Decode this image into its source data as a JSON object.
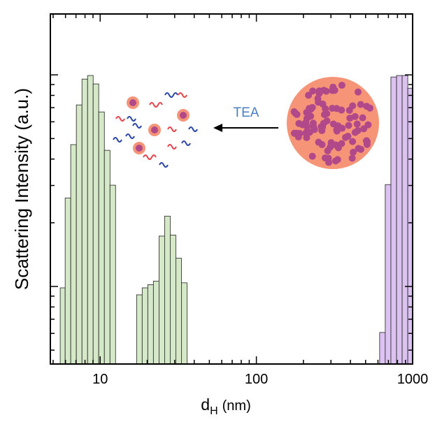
{
  "chart_data": {
    "type": "histogram",
    "ylabel": "Scattering Intensity (a.u.)",
    "xlabel": "d",
    "xlabel_subscript": "H",
    "xlabel_unit": "(nm)",
    "annotation": "TEA",
    "xscale": "log",
    "yscale": "log",
    "xlim": [
      4.8,
      1000
    ],
    "ylim": [
      4.3,
      194
    ],
    "xticks": [
      10,
      100,
      1000
    ],
    "xminor_ticks": [
      5,
      6,
      7,
      8,
      9,
      20,
      30,
      40,
      50,
      60,
      70,
      80,
      90,
      200,
      300,
      400,
      500,
      600,
      700,
      800,
      900
    ],
    "yticks": [
      10,
      100
    ],
    "yminor_ticks": [
      5,
      6,
      7,
      8,
      9,
      20,
      30,
      40,
      50,
      60,
      70,
      80,
      90
    ],
    "series": [
      {
        "color": "#d5e8c8",
        "bins": [
          5.55,
          5.97,
          6.48,
          7.04,
          7.65,
          8.31,
          9.02,
          9.79,
          10.64,
          11.56,
          12.55
        ],
        "values": [
          9.85,
          26.2,
          46.8,
          72.1,
          95.5,
          99.3,
          90.6,
          66.8,
          44.0,
          30.1
        ]
      },
      {
        "color": "#d5e8c8",
        "bins": [
          17.11,
          18.58,
          20.18,
          21.92,
          23.81,
          25.86,
          28.08,
          30.5,
          33.13,
          35.98
        ],
        "values": [
          9.13,
          9.85,
          10.2,
          10.6,
          17.3,
          21.5,
          17.5,
          13.6,
          10.4
        ]
      },
      {
        "color": "#dcc2f0",
        "bins": [
          615,
          668,
          726,
          789,
          857,
          931,
          1000
        ],
        "values": [
          6.06,
          30.3,
          97.7,
          99.3,
          99.3,
          86.5
        ]
      }
    ]
  }
}
